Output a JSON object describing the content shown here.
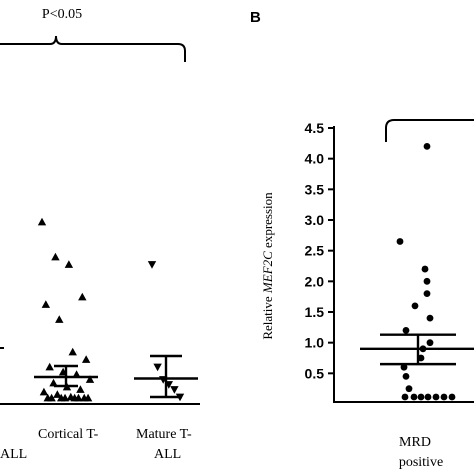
{
  "chart_data": [
    {
      "type": "scatter",
      "panel": "",
      "annotation": "P<0.05",
      "ylabel": "",
      "categories": [
        {
          "label_lines": [
            "Cortical T-",
            "ALL"
          ]
        },
        {
          "label_lines": [
            "Mature T-",
            "ALL"
          ]
        }
      ],
      "series": [
        {
          "marker": "triangle-up",
          "points": [
            3.6,
            2.9,
            2.75,
            2.1,
            1.95,
            1.65,
            1.0,
            0.85,
            0.7,
            0.6,
            0.55,
            0.45,
            0.38,
            0.3,
            0.25,
            0.2,
            0.15,
            0.1,
            0.08,
            0.05,
            0.05,
            0.05,
            0.05,
            0.05,
            0.05,
            0.05
          ],
          "mean": 0.5,
          "sem_low": 0.32,
          "sem_high": 0.72
        },
        {
          "marker": "triangle-down",
          "points": [
            2.75,
            0.7,
            0.45,
            0.35,
            0.25,
            0.1
          ],
          "mean": 0.47,
          "sem_low": 0.1,
          "sem_high": 0.92
        }
      ]
    },
    {
      "type": "scatter",
      "panel": "B",
      "ylabel": "Relative MEF2C expression",
      "ylabel_parts": [
        "Relative ",
        "MEF2C",
        " expression"
      ],
      "yticks": [
        "4.5",
        "4.0",
        "3.5",
        "3.0",
        "2.5",
        "2.0",
        "1.5",
        "1.0",
        "0.5"
      ],
      "ylim": [
        0,
        4.5
      ],
      "categories": [
        {
          "label_lines": [
            "MRD",
            "positive"
          ]
        }
      ],
      "series": [
        {
          "marker": "circle",
          "points": [
            4.2,
            2.65,
            2.2,
            2.0,
            1.8,
            1.6,
            1.4,
            1.2,
            1.0,
            0.9,
            0.75,
            0.6,
            0.45,
            0.25,
            0.02,
            0.02,
            0.02,
            0.02,
            0.02,
            0.02,
            0.02
          ],
          "mean": 0.9,
          "sem_low": 0.65,
          "sem_high": 1.13
        }
      ]
    }
  ]
}
